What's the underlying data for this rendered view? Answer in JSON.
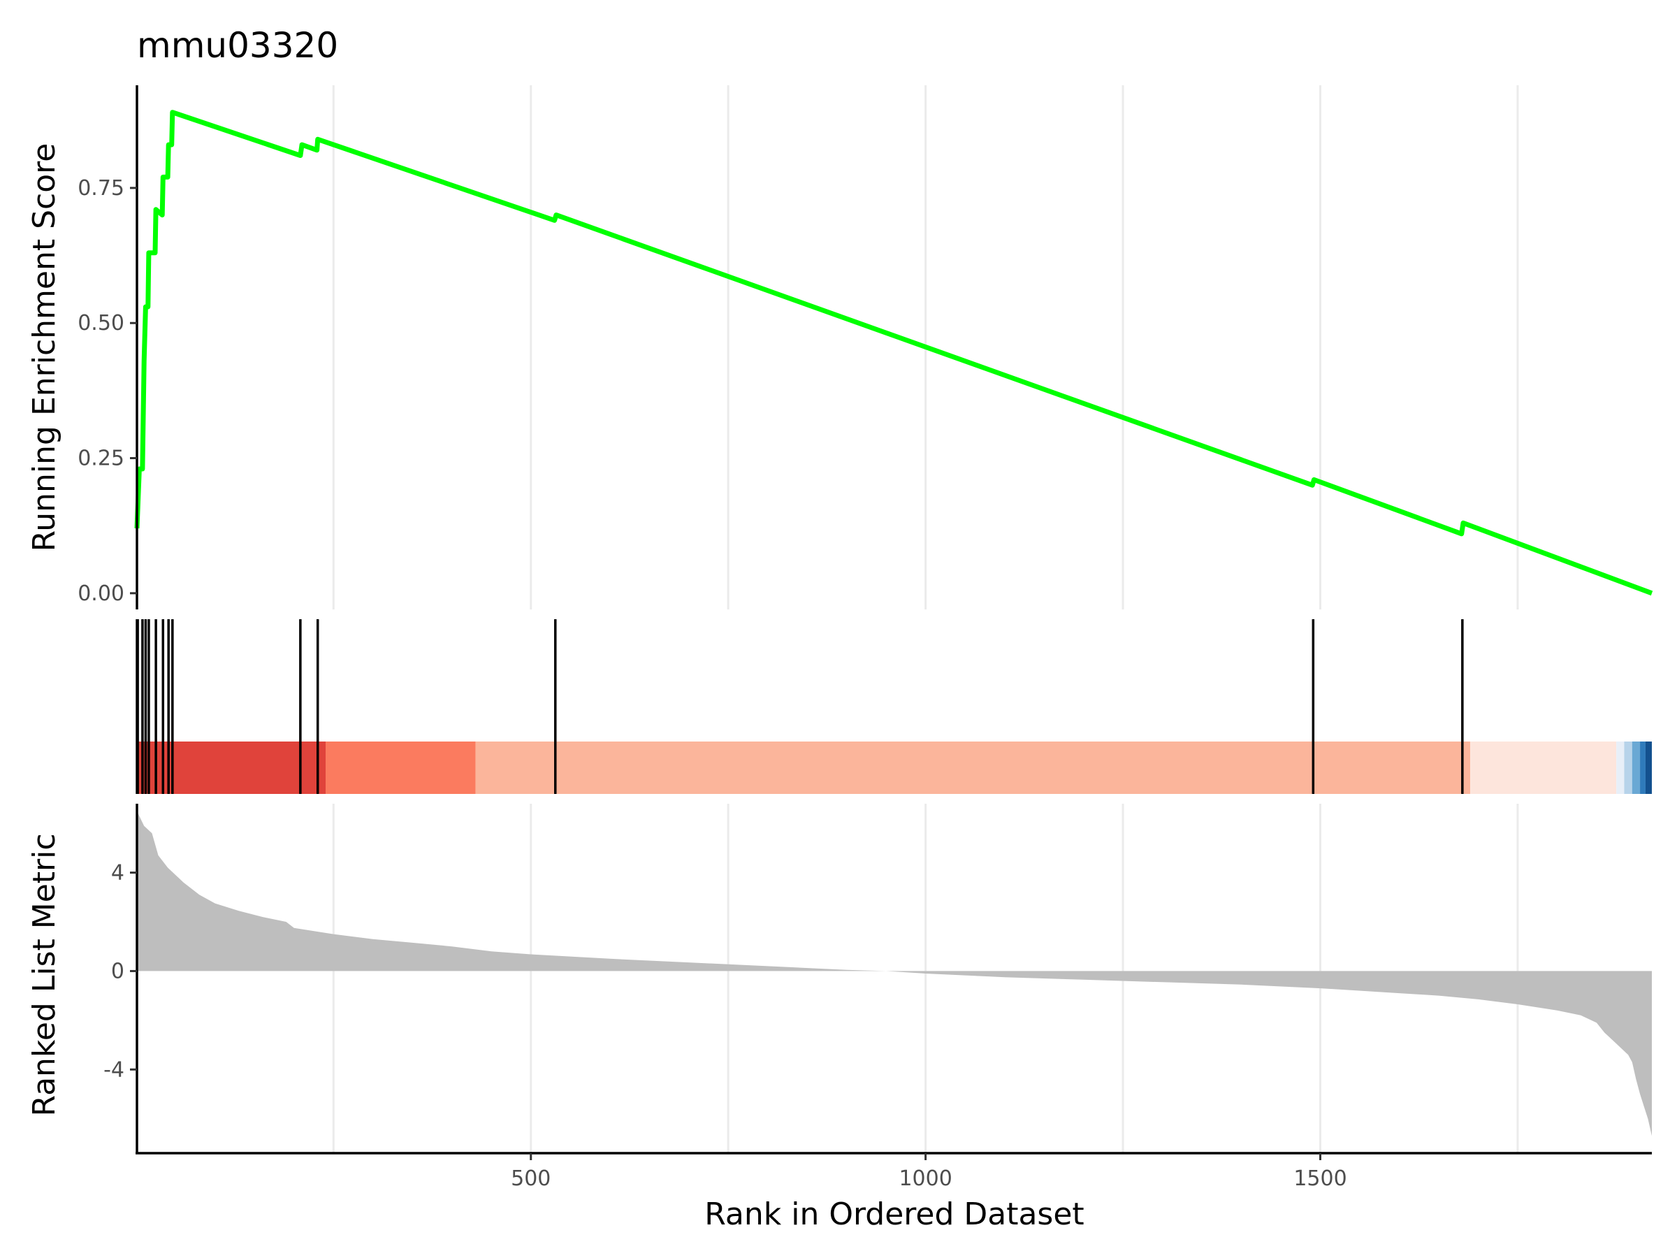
{
  "chart_data": {
    "type": "line",
    "title": "mmu03320",
    "xlabel": "Rank in Ordered Dataset",
    "xlim": [
      1,
      1920
    ],
    "x_ticks": [
      500,
      1000,
      1500
    ],
    "panels": {
      "enrichment": {
        "ylabel": "Running Enrichment Score",
        "ylim": [
          -0.03,
          0.94
        ],
        "y_ticks": [
          0.0,
          0.25,
          0.5,
          0.75
        ],
        "y_tick_labels": [
          "0.00",
          "0.25",
          "0.50",
          "0.75"
        ],
        "line_color": "#00ff00",
        "points": [
          [
            1,
            0.12
          ],
          [
            4,
            0.23
          ],
          [
            8,
            0.23
          ],
          [
            10,
            0.43
          ],
          [
            12,
            0.53
          ],
          [
            15,
            0.53
          ],
          [
            16,
            0.63
          ],
          [
            24,
            0.63
          ],
          [
            25,
            0.71
          ],
          [
            33,
            0.7
          ],
          [
            34,
            0.77
          ],
          [
            40,
            0.77
          ],
          [
            41,
            0.83
          ],
          [
            45,
            0.83
          ],
          [
            46,
            0.89
          ],
          [
            208,
            0.81
          ],
          [
            210,
            0.83
          ],
          [
            229,
            0.82
          ],
          [
            230,
            0.84
          ],
          [
            530,
            0.69
          ],
          [
            532,
            0.7
          ],
          [
            1490,
            0.2
          ],
          [
            1492,
            0.21
          ],
          [
            1679,
            0.11
          ],
          [
            1681,
            0.13
          ],
          [
            1920,
            0.0
          ]
        ]
      },
      "hits": {
        "positions": [
          2,
          8,
          12,
          16,
          25,
          34,
          41,
          46,
          208,
          230,
          531,
          1491,
          1680
        ],
        "color": "#000000"
      },
      "heatmap": {
        "bands": [
          {
            "start": 1,
            "end": 240,
            "color": "#e0433b"
          },
          {
            "start": 240,
            "end": 430,
            "color": "#fb7b5f"
          },
          {
            "start": 430,
            "end": 1690,
            "color": "#fbb59b"
          },
          {
            "start": 1690,
            "end": 1875,
            "color": "#fde5dc"
          },
          {
            "start": 1875,
            "end": 1885,
            "color": "#e8eff8"
          },
          {
            "start": 1885,
            "end": 1895,
            "color": "#b7d3ea"
          },
          {
            "start": 1895,
            "end": 1905,
            "color": "#6aa8d4"
          },
          {
            "start": 1905,
            "end": 1912,
            "color": "#2f7bbb"
          },
          {
            "start": 1912,
            "end": 1920,
            "color": "#13518f"
          }
        ]
      },
      "metric": {
        "ylabel": "Ranked List Metric",
        "ylim": [
          -7.4,
          6.8
        ],
        "y_ticks": [
          -4,
          0,
          4
        ],
        "y_tick_labels": [
          "-4",
          "0",
          "4"
        ],
        "fill_color": "#bebebe",
        "points": [
          [
            1,
            6.5
          ],
          [
            10,
            5.9
          ],
          [
            20,
            5.6
          ],
          [
            28,
            4.7
          ],
          [
            40,
            4.2
          ],
          [
            60,
            3.6
          ],
          [
            80,
            3.1
          ],
          [
            100,
            2.75
          ],
          [
            130,
            2.45
          ],
          [
            160,
            2.2
          ],
          [
            190,
            2.0
          ],
          [
            200,
            1.75
          ],
          [
            250,
            1.5
          ],
          [
            300,
            1.3
          ],
          [
            350,
            1.15
          ],
          [
            400,
            1.0
          ],
          [
            450,
            0.8
          ],
          [
            500,
            0.68
          ],
          [
            600,
            0.5
          ],
          [
            700,
            0.35
          ],
          [
            800,
            0.2
          ],
          [
            900,
            0.05
          ],
          [
            950,
            0.0
          ],
          [
            1000,
            -0.1
          ],
          [
            1100,
            -0.25
          ],
          [
            1200,
            -0.35
          ],
          [
            1300,
            -0.45
          ],
          [
            1400,
            -0.55
          ],
          [
            1500,
            -0.7
          ],
          [
            1600,
            -0.9
          ],
          [
            1650,
            -1.0
          ],
          [
            1700,
            -1.15
          ],
          [
            1750,
            -1.35
          ],
          [
            1800,
            -1.6
          ],
          [
            1830,
            -1.8
          ],
          [
            1850,
            -2.1
          ],
          [
            1860,
            -2.5
          ],
          [
            1870,
            -2.8
          ],
          [
            1880,
            -3.1
          ],
          [
            1890,
            -3.4
          ],
          [
            1895,
            -3.7
          ],
          [
            1900,
            -4.4
          ],
          [
            1905,
            -5.0
          ],
          [
            1910,
            -5.5
          ],
          [
            1915,
            -6.0
          ],
          [
            1920,
            -6.7
          ]
        ]
      }
    }
  }
}
